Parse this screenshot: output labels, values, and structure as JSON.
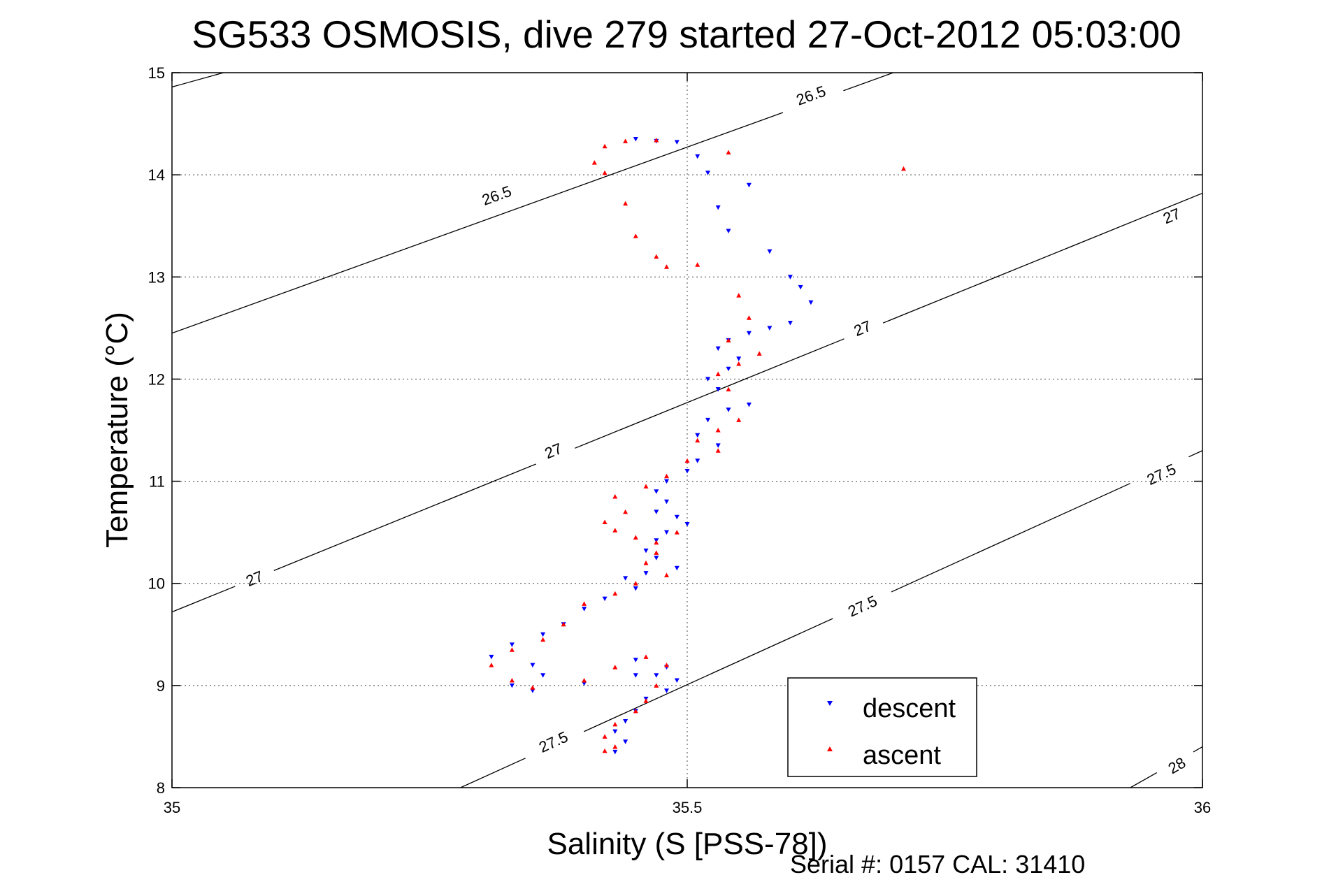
{
  "chart_data": {
    "type": "scatter",
    "title": "SG533 OSMOSIS, dive 279 started 27-Oct-2012 05:03:00",
    "xlabel": "Salinity (S [PSS-78])",
    "ylabel": "Temperature (°C)",
    "xlim": [
      35,
      36
    ],
    "ylim": [
      8,
      15
    ],
    "x_ticks": [
      "35",
      "35.5",
      "36"
    ],
    "y_ticks": [
      "8",
      "9",
      "10",
      "11",
      "12",
      "13",
      "14",
      "15"
    ],
    "grid": true,
    "legend_position": "bottom-right",
    "footer": "Serial #: 0157  CAL: 31410",
    "isopycnals": [
      {
        "label": "26.5",
        "segments": [
          [
            35.0,
            14.86,
            35.05,
            15.0
          ],
          [
            35.0,
            12.45,
            35.7,
            15.0
          ]
        ],
        "label_points": [
          [
            35.315,
            13.8
          ],
          [
            35.62,
            14.78
          ]
        ]
      },
      {
        "label": "27",
        "segments": [
          [
            35.0,
            9.72,
            36.0,
            13.82
          ]
        ],
        "label_points": [
          [
            35.08,
            10.05
          ],
          [
            35.37,
            11.3
          ],
          [
            35.67,
            12.5
          ],
          [
            35.97,
            13.6
          ]
        ]
      },
      {
        "label": "27.5",
        "segments": [
          [
            35.28,
            8.0,
            36.0,
            11.3
          ]
        ],
        "label_points": [
          [
            35.37,
            8.45
          ],
          [
            35.67,
            9.78
          ],
          [
            35.96,
            11.07
          ]
        ]
      },
      {
        "label": "28",
        "segments": [
          [
            35.93,
            8.0,
            36.0,
            8.4
          ]
        ],
        "label_points": [
          [
            35.975,
            8.22
          ]
        ]
      }
    ],
    "series": [
      {
        "name": "descent",
        "color": "#0000ff",
        "marker": "triangle-down",
        "points": [
          [
            35.45,
            14.35
          ],
          [
            35.47,
            14.33
          ],
          [
            35.49,
            14.32
          ],
          [
            35.51,
            14.18
          ],
          [
            35.52,
            14.02
          ],
          [
            35.56,
            13.9
          ],
          [
            35.53,
            13.68
          ],
          [
            35.54,
            13.45
          ],
          [
            35.58,
            13.25
          ],
          [
            35.6,
            13.0
          ],
          [
            35.61,
            12.9
          ],
          [
            35.62,
            12.75
          ],
          [
            35.6,
            12.55
          ],
          [
            35.58,
            12.5
          ],
          [
            35.56,
            12.45
          ],
          [
            35.54,
            12.38
          ],
          [
            35.53,
            12.3
          ],
          [
            35.55,
            12.2
          ],
          [
            35.54,
            12.1
          ],
          [
            35.52,
            12.0
          ],
          [
            35.53,
            11.9
          ],
          [
            35.56,
            11.75
          ],
          [
            35.54,
            11.7
          ],
          [
            35.52,
            11.6
          ],
          [
            35.51,
            11.45
          ],
          [
            35.53,
            11.35
          ],
          [
            35.51,
            11.2
          ],
          [
            35.5,
            11.1
          ],
          [
            35.48,
            11.0
          ],
          [
            35.47,
            10.9
          ],
          [
            35.48,
            10.8
          ],
          [
            35.47,
            10.7
          ],
          [
            35.49,
            10.65
          ],
          [
            35.5,
            10.58
          ],
          [
            35.48,
            10.5
          ],
          [
            35.47,
            10.42
          ],
          [
            35.46,
            10.32
          ],
          [
            35.47,
            10.25
          ],
          [
            35.49,
            10.15
          ],
          [
            35.46,
            10.1
          ],
          [
            35.44,
            10.05
          ],
          [
            35.45,
            9.95
          ],
          [
            35.42,
            9.85
          ],
          [
            35.4,
            9.75
          ],
          [
            35.38,
            9.6
          ],
          [
            35.36,
            9.5
          ],
          [
            35.33,
            9.4
          ],
          [
            35.31,
            9.28
          ],
          [
            35.35,
            9.2
          ],
          [
            35.36,
            9.1
          ],
          [
            35.33,
            9.0
          ],
          [
            35.35,
            8.95
          ],
          [
            35.4,
            9.02
          ],
          [
            35.45,
            9.1
          ],
          [
            35.48,
            9.18
          ],
          [
            35.45,
            9.25
          ],
          [
            35.47,
            9.1
          ],
          [
            35.49,
            9.05
          ],
          [
            35.48,
            8.95
          ],
          [
            35.46,
            8.87
          ],
          [
            35.45,
            8.75
          ],
          [
            35.44,
            8.65
          ],
          [
            35.43,
            8.55
          ],
          [
            35.44,
            8.45
          ],
          [
            35.43,
            8.35
          ]
        ]
      },
      {
        "name": "ascent",
        "color": "#ff0000",
        "marker": "triangle-up",
        "points": [
          [
            35.42,
            14.28
          ],
          [
            35.44,
            14.33
          ],
          [
            35.47,
            14.34
          ],
          [
            35.41,
            14.12
          ],
          [
            35.42,
            14.02
          ],
          [
            35.54,
            14.22
          ],
          [
            35.71,
            14.06
          ],
          [
            35.44,
            13.72
          ],
          [
            35.45,
            13.4
          ],
          [
            35.47,
            13.2
          ],
          [
            35.48,
            13.1
          ],
          [
            35.51,
            13.12
          ],
          [
            35.55,
            12.82
          ],
          [
            35.56,
            12.6
          ],
          [
            35.54,
            12.38
          ],
          [
            35.57,
            12.25
          ],
          [
            35.55,
            12.15
          ],
          [
            35.53,
            12.05
          ],
          [
            35.54,
            11.9
          ],
          [
            35.55,
            11.6
          ],
          [
            35.53,
            11.5
          ],
          [
            35.51,
            11.4
          ],
          [
            35.53,
            11.3
          ],
          [
            35.5,
            11.2
          ],
          [
            35.48,
            11.05
          ],
          [
            35.46,
            10.95
          ],
          [
            35.43,
            10.85
          ],
          [
            35.44,
            10.7
          ],
          [
            35.42,
            10.6
          ],
          [
            35.43,
            10.52
          ],
          [
            35.45,
            10.45
          ],
          [
            35.47,
            10.4
          ],
          [
            35.49,
            10.5
          ],
          [
            35.47,
            10.3
          ],
          [
            35.46,
            10.2
          ],
          [
            35.48,
            10.08
          ],
          [
            35.45,
            10.0
          ],
          [
            35.43,
            9.9
          ],
          [
            35.4,
            9.8
          ],
          [
            35.38,
            9.6
          ],
          [
            35.36,
            9.45
          ],
          [
            35.33,
            9.35
          ],
          [
            35.31,
            9.2
          ],
          [
            35.33,
            9.05
          ],
          [
            35.35,
            8.98
          ],
          [
            35.4,
            9.05
          ],
          [
            35.43,
            9.18
          ],
          [
            35.46,
            9.28
          ],
          [
            35.48,
            9.2
          ],
          [
            35.47,
            9.0
          ],
          [
            35.46,
            8.85
          ],
          [
            35.45,
            8.75
          ],
          [
            35.43,
            8.62
          ],
          [
            35.42,
            8.5
          ],
          [
            35.43,
            8.4
          ],
          [
            35.42,
            8.36
          ]
        ]
      }
    ]
  }
}
